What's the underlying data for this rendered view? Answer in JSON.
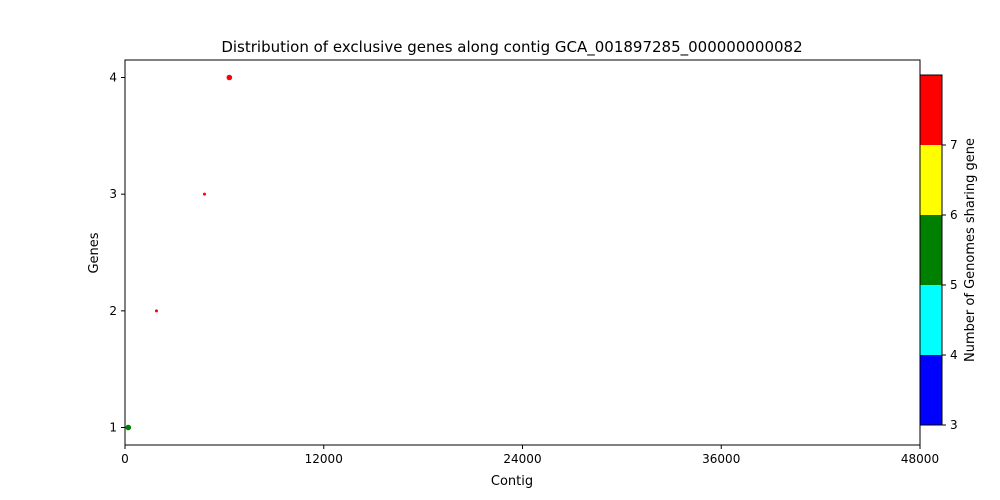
{
  "chart_data": {
    "type": "scatter",
    "title": "Distribution of exclusive genes along contig GCA_001897285_000000000082",
    "xlabel": "Contig",
    "ylabel": "Genes",
    "xlim": [
      0,
      48000
    ],
    "ylim": [
      0.85,
      4.15
    ],
    "x_ticks": [
      "0",
      "12000",
      "24000",
      "36000",
      "48000"
    ],
    "y_ticks": [
      "1",
      "2",
      "3",
      "4"
    ],
    "points": [
      {
        "x": 200,
        "y": 1,
        "genomes": 5,
        "color": "#008000"
      },
      {
        "x": 1900,
        "y": 2,
        "genomes": 7,
        "color": "#ff0000"
      },
      {
        "x": 4800,
        "y": 3,
        "genomes": 7,
        "color": "#ff0000"
      },
      {
        "x": 6300,
        "y": 4,
        "genomes": 7,
        "color": "#ff0000"
      }
    ],
    "colorbar": {
      "label": "Number of Genomes sharing gene",
      "tick_labels": [
        "3",
        "4",
        "5",
        "6",
        "7"
      ],
      "bins": [
        {
          "from": 3,
          "to": 4,
          "color": "#0000ff"
        },
        {
          "from": 4,
          "to": 5,
          "color": "#00ffff"
        },
        {
          "from": 5,
          "to": 6,
          "color": "#008000"
        },
        {
          "from": 6,
          "to": 7,
          "color": "#ffff00"
        },
        {
          "from": 7,
          "to": 8,
          "color": "#ff0000"
        }
      ]
    },
    "grid": false,
    "legend": "none"
  }
}
